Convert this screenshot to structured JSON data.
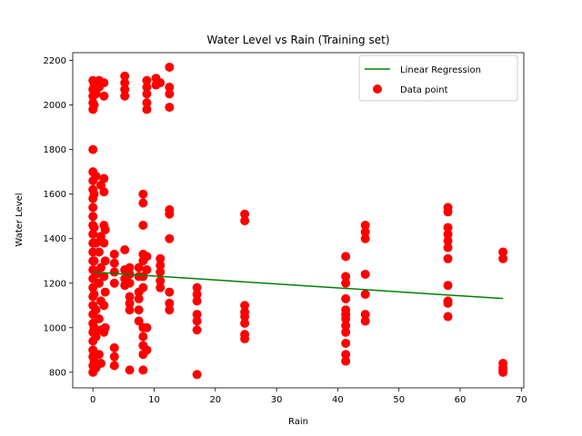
{
  "chart_data": {
    "type": "scatter",
    "title": "Water Level vs Rain (Training set)",
    "xlabel": "Rain",
    "ylabel": "Water Level",
    "xlim": [
      -3.3,
      70.4
    ],
    "ylim": [
      730,
      2235
    ],
    "xticks": [
      0,
      10,
      20,
      30,
      40,
      50,
      60,
      70
    ],
    "yticks": [
      800,
      1000,
      1200,
      1400,
      1600,
      1800,
      2000,
      2200
    ],
    "grid": false,
    "legend_position": "top-right",
    "colors": {
      "points": "#ff0000",
      "line": "#008000"
    },
    "series": [
      {
        "name": "Linear Regression",
        "kind": "line",
        "x": [
          0,
          67
        ],
        "y": [
          1250,
          1131
        ]
      },
      {
        "name": "Data point",
        "kind": "scatter",
        "points": [
          [
            0,
            800
          ],
          [
            0,
            830
          ],
          [
            0,
            870
          ],
          [
            0,
            900
          ],
          [
            0,
            940
          ],
          [
            0,
            980
          ],
          [
            0,
            1020
          ],
          [
            0,
            1060
          ],
          [
            0,
            1100
          ],
          [
            0,
            1140
          ],
          [
            0,
            1180
          ],
          [
            0,
            1220
          ],
          [
            0,
            1260
          ],
          [
            0,
            1300
          ],
          [
            0,
            1340
          ],
          [
            0,
            1380
          ],
          [
            0,
            1420
          ],
          [
            0,
            1460
          ],
          [
            0,
            1500
          ],
          [
            0,
            1540
          ],
          [
            0,
            1580
          ],
          [
            0,
            1620
          ],
          [
            0,
            1660
          ],
          [
            0,
            1700
          ],
          [
            0,
            1800
          ],
          [
            0,
            1980
          ],
          [
            0,
            2010
          ],
          [
            0,
            2040
          ],
          [
            0,
            2070
          ],
          [
            0,
            2110
          ],
          [
            0.2,
            850
          ],
          [
            0.2,
            1000
          ],
          [
            0.2,
            1150
          ],
          [
            0.2,
            1300
          ],
          [
            0.2,
            1450
          ],
          [
            0.2,
            1600
          ],
          [
            0.2,
            2000
          ],
          [
            0.2,
            2090
          ],
          [
            0.5,
            820
          ],
          [
            0.5,
            960
          ],
          [
            0.5,
            1080
          ],
          [
            0.5,
            1240
          ],
          [
            0.5,
            1380
          ],
          [
            0.5,
            1680
          ],
          [
            0.5,
            2050
          ],
          [
            1,
            880
          ],
          [
            1,
            1040
          ],
          [
            1,
            1200
          ],
          [
            1,
            1340
          ],
          [
            1,
            2080
          ],
          [
            1,
            2110
          ],
          [
            1.3,
            840
          ],
          [
            1.3,
            990
          ],
          [
            1.3,
            1120
          ],
          [
            1.3,
            1270
          ],
          [
            1.3,
            1410
          ],
          [
            1.3,
            1640
          ],
          [
            1.8,
            980
          ],
          [
            1.8,
            1100
          ],
          [
            1.8,
            1230
          ],
          [
            1.8,
            1380
          ],
          [
            1.8,
            1460
          ],
          [
            1.8,
            1610
          ],
          [
            1.8,
            1670
          ],
          [
            1.8,
            2040
          ],
          [
            1.8,
            2100
          ],
          [
            2,
            1000
          ],
          [
            2,
            1160
          ],
          [
            2,
            1300
          ],
          [
            2,
            1440
          ],
          [
            3.5,
            830
          ],
          [
            3.5,
            870
          ],
          [
            3.5,
            910
          ],
          [
            3.5,
            1200
          ],
          [
            3.5,
            1250
          ],
          [
            3.5,
            1290
          ],
          [
            3.5,
            1330
          ],
          [
            5.2,
            1190
          ],
          [
            5.2,
            1220
          ],
          [
            5.2,
            1260
          ],
          [
            5.2,
            1350
          ],
          [
            5.2,
            2040
          ],
          [
            5.2,
            2070
          ],
          [
            5.2,
            2100
          ],
          [
            5.2,
            2130
          ],
          [
            6,
            810
          ],
          [
            6,
            1080
          ],
          [
            6,
            1110
          ],
          [
            6,
            1140
          ],
          [
            6,
            1200
          ],
          [
            6,
            1240
          ],
          [
            6,
            1270
          ],
          [
            7.5,
            1030
          ],
          [
            7.5,
            1080
          ],
          [
            7.5,
            1130
          ],
          [
            7.5,
            1160
          ],
          [
            7.5,
            1230
          ],
          [
            7.5,
            1270
          ],
          [
            8.2,
            810
          ],
          [
            8.2,
            880
          ],
          [
            8.2,
            920
          ],
          [
            8.2,
            960
          ],
          [
            8.2,
            1000
          ],
          [
            8.2,
            1180
          ],
          [
            8.2,
            1230
          ],
          [
            8.2,
            1300
          ],
          [
            8.2,
            1330
          ],
          [
            8.2,
            1460
          ],
          [
            8.2,
            1560
          ],
          [
            8.2,
            1600
          ],
          [
            8.8,
            900
          ],
          [
            8.8,
            1000
          ],
          [
            8.8,
            1260
          ],
          [
            8.8,
            1320
          ],
          [
            8.8,
            1980
          ],
          [
            8.8,
            2010
          ],
          [
            8.8,
            2050
          ],
          [
            8.8,
            2080
          ],
          [
            8.8,
            2110
          ],
          [
            10.3,
            2090
          ],
          [
            10.3,
            2120
          ],
          [
            11,
            1180
          ],
          [
            11,
            1210
          ],
          [
            11,
            1250
          ],
          [
            11,
            1280
          ],
          [
            11,
            1310
          ],
          [
            11,
            2100
          ],
          [
            12.5,
            1080
          ],
          [
            12.5,
            1110
          ],
          [
            12.5,
            1160
          ],
          [
            12.5,
            1400
          ],
          [
            12.5,
            1510
          ],
          [
            12.5,
            1530
          ],
          [
            12.5,
            1990
          ],
          [
            12.5,
            2050
          ],
          [
            12.5,
            2080
          ],
          [
            12.5,
            2170
          ],
          [
            17,
            790
          ],
          [
            17,
            990
          ],
          [
            17,
            1030
          ],
          [
            17,
            1060
          ],
          [
            17,
            1120
          ],
          [
            17,
            1150
          ],
          [
            17,
            1180
          ],
          [
            24.8,
            950
          ],
          [
            24.8,
            970
          ],
          [
            24.8,
            1020
          ],
          [
            24.8,
            1050
          ],
          [
            24.8,
            1070
          ],
          [
            24.8,
            1100
          ],
          [
            24.8,
            1480
          ],
          [
            24.8,
            1510
          ],
          [
            41.3,
            850
          ],
          [
            41.3,
            880
          ],
          [
            41.3,
            930
          ],
          [
            41.3,
            980
          ],
          [
            41.3,
            1010
          ],
          [
            41.3,
            1040
          ],
          [
            41.3,
            1060
          ],
          [
            41.3,
            1080
          ],
          [
            41.3,
            1130
          ],
          [
            41.3,
            1200
          ],
          [
            41.3,
            1230
          ],
          [
            41.3,
            1320
          ],
          [
            44.5,
            1030
          ],
          [
            44.5,
            1060
          ],
          [
            44.5,
            1150
          ],
          [
            44.5,
            1240
          ],
          [
            44.5,
            1400
          ],
          [
            44.5,
            1430
          ],
          [
            44.5,
            1460
          ],
          [
            58,
            1050
          ],
          [
            58,
            1110
          ],
          [
            58,
            1120
          ],
          [
            58,
            1190
          ],
          [
            58,
            1310
          ],
          [
            58,
            1360
          ],
          [
            58,
            1390
          ],
          [
            58,
            1420
          ],
          [
            58,
            1450
          ],
          [
            58,
            1520
          ],
          [
            58,
            1540
          ],
          [
            67,
            800
          ],
          [
            67,
            810
          ],
          [
            67,
            820
          ],
          [
            67,
            840
          ],
          [
            67,
            1310
          ],
          [
            67,
            1340
          ]
        ]
      }
    ]
  }
}
